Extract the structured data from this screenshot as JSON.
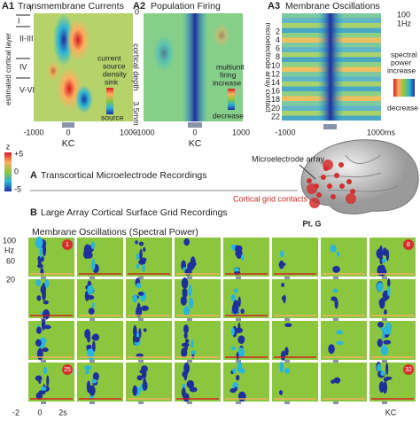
{
  "panel_a1": {
    "label": "A1",
    "title": "Transmembrane Currents",
    "layers": [
      "I",
      "II-III",
      "IV",
      "V-VI"
    ],
    "y_axis_label": "estimated cortical layer",
    "colorbar_label": [
      "current",
      "source",
      "density"
    ],
    "colorbar_top": "sink",
    "colorbar_bottom": "source",
    "x_ticks": [
      "-1000",
      "0",
      "1000"
    ],
    "event": "KC"
  },
  "panel_a2": {
    "label": "A2",
    "title": "Population Firing",
    "y_top": "0",
    "y_axis_label": "cortical depth",
    "y_bottom": "3.5mm",
    "colorbar_label": [
      "multiunit",
      "firing",
      "increase"
    ],
    "colorbar_bottom": "decrease",
    "x_ticks": [
      "-1000",
      "0",
      "1000"
    ],
    "event": "KC"
  },
  "panel_a3": {
    "label": "A3",
    "title": "Membrane Oscillations",
    "freq_top": "100",
    "freq_bottom": "1Hz",
    "contacts": [
      "2",
      "4",
      "6",
      "8",
      "10",
      "12",
      "14",
      "16",
      "18",
      "20",
      "22"
    ],
    "y_axis_label": "microelectrode array contact",
    "colorbar_label": [
      "spectral",
      "power",
      "increase"
    ],
    "colorbar_bottom": "decrease",
    "x_ticks": [
      "-1000",
      "1000ms"
    ]
  },
  "z_scale": {
    "label": "z",
    "ticks": [
      "+5",
      "0",
      "-5"
    ]
  },
  "section_a": {
    "letter": "A",
    "title": "Transcortical Microelectrode Recordings"
  },
  "section_b": {
    "letter": "B",
    "title": "Large Array Cortical Surface Grid Recordings"
  },
  "brain": {
    "array_label": "Microelectrode array",
    "grid_label": "Cortical grid contacts",
    "patient": "Pt. G"
  },
  "grid": {
    "title": "Membrane Oscillations (Spectral Power)",
    "y_ticks": [
      "100",
      "60",
      "20"
    ],
    "y_unit": "Hz",
    "x_ticks": [
      "-2",
      "0",
      "2s"
    ],
    "event": "KC",
    "contacts": [
      "1",
      "8",
      "25",
      "32"
    ]
  }
}
